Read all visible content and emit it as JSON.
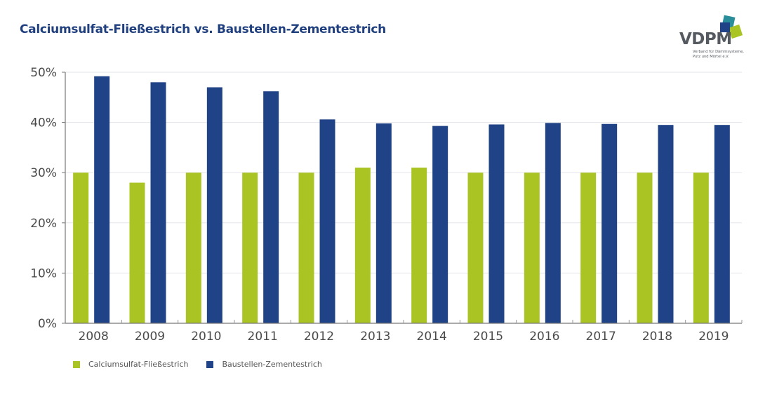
{
  "chart_data": {
    "type": "bar",
    "title": "Calciumsulfat-Fließestrich vs. Baustellen-Zementestrich",
    "xlabel": "",
    "ylabel": "",
    "ylim": [
      0,
      50
    ],
    "yticks": [
      0,
      10,
      20,
      30,
      40,
      50
    ],
    "ytick_labels": [
      "0%",
      "10%",
      "20%",
      "30%",
      "40%",
      "50%"
    ],
    "grid": true,
    "legend_position": "bottom-left",
    "categories": [
      "2008",
      "2009",
      "2010",
      "2011",
      "2012",
      "2013",
      "2014",
      "2015",
      "2016",
      "2017",
      "2018",
      "2019"
    ],
    "series": [
      {
        "name": "Calciumsulfat-Fließestrich",
        "color": "#a9c423",
        "values": [
          30,
          28,
          30,
          30,
          30,
          31,
          31,
          30,
          30,
          30,
          30,
          30
        ]
      },
      {
        "name": "Baustellen-Zementestrich",
        "color": "#1f4386",
        "values": [
          49.2,
          48,
          47,
          46.2,
          40.6,
          39.8,
          39.3,
          39.6,
          39.9,
          39.7,
          39.5,
          39.5
        ]
      }
    ]
  },
  "logo": {
    "text": "VDPM",
    "subtitle_line1": "Verband für Dämmsysteme,",
    "subtitle_line2": "Putz und Mörtel e.V.",
    "colors": [
      "#1f4386",
      "#2a8e9a",
      "#a9c423"
    ]
  }
}
